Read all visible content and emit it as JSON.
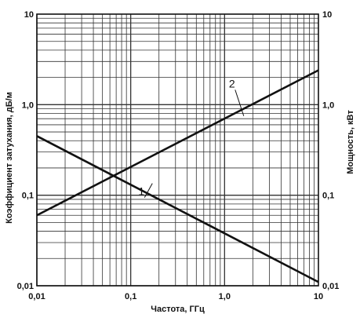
{
  "chart_data": {
    "type": "line",
    "xscale": "log",
    "yscale": "log",
    "xlim": [
      0.01,
      10
    ],
    "ylim": [
      0.01,
      10
    ],
    "grid": true,
    "xlabel": "Частота, ГГц",
    "ylabel_left": "Коэффициент затухания, дБ/м",
    "ylabel_right": "Мощность, кВт",
    "x_ticks": [
      {
        "value": 0.01,
        "label": "0,01"
      },
      {
        "value": 0.1,
        "label": "0,1"
      },
      {
        "value": 1,
        "label": "1,0"
      },
      {
        "value": 10,
        "label": "10"
      }
    ],
    "y_ticks_left": [
      {
        "value": 10,
        "label": "10"
      },
      {
        "value": 1,
        "label": "1,0"
      },
      {
        "value": 0.1,
        "label": "0,1"
      },
      {
        "value": 0.01,
        "label": "0,01"
      }
    ],
    "y_ticks_right": [
      {
        "value": 10,
        "label": "10"
      },
      {
        "value": 1,
        "label": "1,0"
      },
      {
        "value": 0.1,
        "label": "0,1"
      },
      {
        "value": 0.01,
        "label": "0,01"
      }
    ],
    "series": [
      {
        "label": "1",
        "points": [
          [
            0.01,
            0.45
          ],
          [
            10,
            0.011
          ]
        ],
        "label_at": [
          0.13,
          0.1
        ],
        "label_anchor": [
          0.17,
          0.135
        ]
      },
      {
        "label": "2",
        "points": [
          [
            0.01,
            0.06
          ],
          [
            10,
            2.4
          ]
        ],
        "label_at": [
          1.2,
          1.55
        ],
        "label_anchor": [
          1.6,
          0.75
        ]
      }
    ],
    "colors": {
      "line": "#111111",
      "grid": "#333333",
      "background": "#ffffff"
    }
  }
}
